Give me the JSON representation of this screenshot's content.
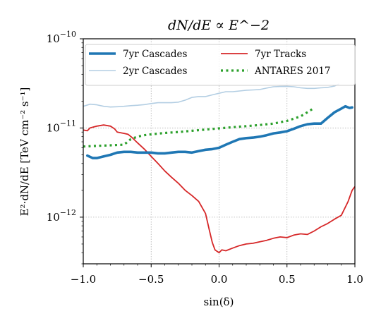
{
  "chart_data": {
    "type": "line",
    "title": "dN/dE ∝ E^−2",
    "xlabel": "sin(δ)",
    "ylabel": "E²·dN/dE  [TeV cm⁻² s⁻¹]",
    "xlim": [
      -1.0,
      1.0
    ],
    "ylim": [
      3e-13,
      1e-10
    ],
    "y_scale": "log",
    "grid": true,
    "legend_position": "top",
    "x_tick_labels": [
      "−1.0",
      "−0.5",
      "0.0",
      "0.5",
      "1.0"
    ],
    "x_ticks": [
      -1.0,
      -0.5,
      0.0,
      0.5,
      1.0
    ],
    "y_tick_labels": [
      {
        "base": "10",
        "exp": "−10",
        "value": 1e-10
      },
      {
        "base": "10",
        "exp": "−11",
        "value": 1e-11
      },
      {
        "base": "10",
        "exp": "−12",
        "value": 1e-12
      }
    ],
    "series": [
      {
        "name": "7yr Cascades",
        "color": "#1f77b4",
        "style": "solid-thick",
        "x": [
          -0.97,
          -0.93,
          -0.9,
          -0.85,
          -0.8,
          -0.75,
          -0.7,
          -0.65,
          -0.6,
          -0.55,
          -0.5,
          -0.45,
          -0.4,
          -0.35,
          -0.3,
          -0.25,
          -0.2,
          -0.15,
          -0.1,
          -0.05,
          0.0,
          0.05,
          0.1,
          0.15,
          0.2,
          0.25,
          0.3,
          0.35,
          0.4,
          0.45,
          0.5,
          0.55,
          0.6,
          0.65,
          0.7,
          0.75,
          0.8,
          0.85,
          0.9,
          0.93,
          0.96,
          0.98
        ],
        "values": [
          4.9e-12,
          4.6e-12,
          4.6e-12,
          4.8e-12,
          5e-12,
          5.3e-12,
          5.4e-12,
          5.4e-12,
          5.3e-12,
          5.3e-12,
          5.3e-12,
          5.2e-12,
          5.2e-12,
          5.3e-12,
          5.4e-12,
          5.4e-12,
          5.3e-12,
          5.5e-12,
          5.7e-12,
          5.8e-12,
          6e-12,
          6.5e-12,
          7e-12,
          7.5e-12,
          7.7e-12,
          7.8e-12,
          8e-12,
          8.3e-12,
          8.7e-12,
          8.9e-12,
          9.2e-12,
          9.8e-12,
          1.05e-11,
          1.1e-11,
          1.12e-11,
          1.12e-11,
          1.3e-11,
          1.5e-11,
          1.65e-11,
          1.75e-11,
          1.68e-11,
          1.7e-11
        ]
      },
      {
        "name": "2yr Cascades",
        "color": "#b3cee3",
        "style": "solid-thin",
        "x": [
          -1.0,
          -0.95,
          -0.9,
          -0.85,
          -0.8,
          -0.75,
          -0.7,
          -0.65,
          -0.6,
          -0.55,
          -0.5,
          -0.45,
          -0.4,
          -0.35,
          -0.3,
          -0.25,
          -0.2,
          -0.15,
          -0.1,
          -0.05,
          0.0,
          0.05,
          0.1,
          0.15,
          0.2,
          0.25,
          0.3,
          0.35,
          0.4,
          0.45,
          0.5,
          0.55,
          0.6,
          0.65,
          0.7,
          0.75,
          0.8,
          0.85,
          0.88
        ],
        "values": [
          1.75e-11,
          1.85e-11,
          1.82e-11,
          1.75e-11,
          1.72e-11,
          1.73e-11,
          1.75e-11,
          1.78e-11,
          1.8e-11,
          1.83e-11,
          1.88e-11,
          1.92e-11,
          1.92e-11,
          1.92e-11,
          1.95e-11,
          2.05e-11,
          2.2e-11,
          2.25e-11,
          2.25e-11,
          2.35e-11,
          2.45e-11,
          2.55e-11,
          2.55e-11,
          2.6e-11,
          2.65e-11,
          2.67e-11,
          2.7e-11,
          2.8e-11,
          2.9e-11,
          2.92e-11,
          2.93e-11,
          2.9e-11,
          2.82e-11,
          2.78e-11,
          2.78e-11,
          2.82e-11,
          2.85e-11,
          2.95e-11,
          3.1e-11
        ]
      },
      {
        "name": "7yr Tracks",
        "color": "#d62728",
        "style": "solid",
        "x": [
          -1.0,
          -0.97,
          -0.95,
          -0.9,
          -0.85,
          -0.8,
          -0.77,
          -0.75,
          -0.7,
          -0.67,
          -0.64,
          -0.6,
          -0.55,
          -0.5,
          -0.45,
          -0.4,
          -0.35,
          -0.3,
          -0.25,
          -0.2,
          -0.15,
          -0.1,
          -0.07,
          -0.05,
          -0.03,
          0.0,
          0.02,
          0.05,
          0.1,
          0.15,
          0.2,
          0.25,
          0.3,
          0.35,
          0.4,
          0.45,
          0.5,
          0.55,
          0.6,
          0.65,
          0.7,
          0.75,
          0.8,
          0.85,
          0.9,
          0.95,
          0.98,
          1.0
        ],
        "values": [
          9.5e-12,
          9.3e-12,
          1e-11,
          1.05e-11,
          1.08e-11,
          1.05e-11,
          9.8e-12,
          9e-12,
          8.7e-12,
          8.5e-12,
          7.8e-12,
          6.8e-12,
          5.8e-12,
          4.8e-12,
          4e-12,
          3.3e-12,
          2.8e-12,
          2.4e-12,
          2e-12,
          1.75e-12,
          1.5e-12,
          1.1e-12,
          7e-13,
          5.2e-13,
          4.3e-13,
          4e-13,
          4.3e-13,
          4.2e-13,
          4.5e-13,
          4.8e-13,
          5e-13,
          5.1e-13,
          5.3e-13,
          5.5e-13,
          5.8e-13,
          6e-13,
          5.9e-13,
          6.3e-13,
          6.5e-13,
          6.4e-13,
          7e-13,
          7.8e-13,
          8.5e-13,
          9.5e-13,
          1.05e-12,
          1.5e-12,
          2e-12,
          2.2e-12
        ]
      },
      {
        "name": "ANTARES 2017",
        "color": "#2ca02c",
        "style": "dotted",
        "x": [
          -1.0,
          -0.9,
          -0.8,
          -0.7,
          -0.65,
          -0.6,
          -0.55,
          -0.5,
          -0.4,
          -0.3,
          -0.2,
          -0.1,
          0.0,
          0.1,
          0.2,
          0.3,
          0.4,
          0.5,
          0.6,
          0.65,
          0.7
        ],
        "values": [
          6.2e-12,
          6.3e-12,
          6.4e-12,
          6.5e-12,
          7.5e-12,
          8e-12,
          8.3e-12,
          8.5e-12,
          8.8e-12,
          9e-12,
          9.3e-12,
          9.6e-12,
          9.9e-12,
          1.02e-11,
          1.05e-11,
          1.08e-11,
          1.12e-11,
          1.2e-11,
          1.35e-11,
          1.5e-11,
          1.68e-11
        ]
      }
    ]
  }
}
